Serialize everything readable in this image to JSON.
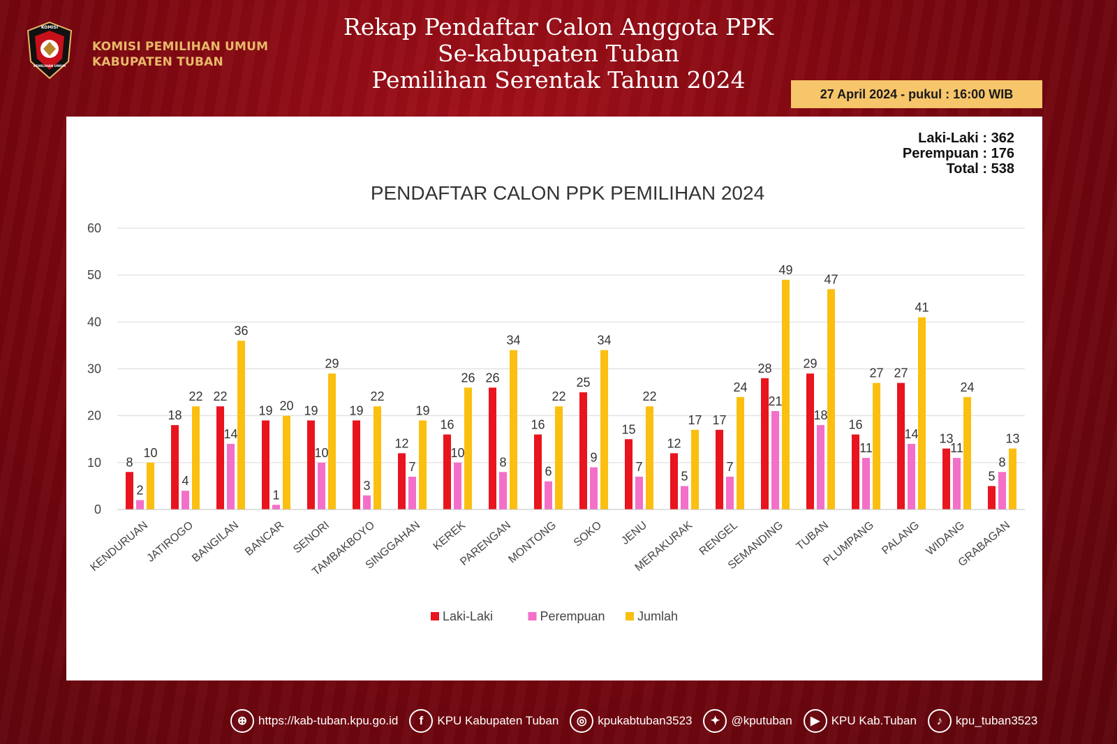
{
  "header": {
    "org_line1": "KOMISI PEMILIHAN UMUM",
    "org_line2": "KABUPATEN TUBAN",
    "logo_top_text": "KOMISI",
    "logo_bottom_text": "PEMILIHAN UMUM",
    "title_line1": "Rekap Pendaftar Calon Anggota PPK",
    "title_line2": "Se-kabupaten Tuban",
    "title_line3": "Pemilihan Serentak Tahun 2024",
    "date": "27 April 2024 - pukul : 16:00 WIB"
  },
  "totals": {
    "line1": "Laki-Laki : 362",
    "line2": "Perempuan : 176",
    "line3": "Total : 538"
  },
  "chart_data": {
    "type": "bar",
    "title": "PENDAFTAR CALON PPK PEMILIHAN 2024",
    "categories": [
      "KENDURUAN",
      "JATIROGO",
      "BANGILAN",
      "BANCAR",
      "SENORI",
      "TAMBAKBOYO",
      "SINGGAHAN",
      "KEREK",
      "PARENGAN",
      "MONTONG",
      "SOKO",
      "JENU",
      "MERAKURAK",
      "RENGEL",
      "SEMANDING",
      "TUBAN",
      "PLUMPANG",
      "PALANG",
      "WIDANG",
      "GRABAGAN"
    ],
    "series": [
      {
        "name": "Laki-Laki",
        "color": "#e8141e",
        "values": [
          8,
          18,
          22,
          19,
          19,
          19,
          12,
          16,
          26,
          16,
          25,
          15,
          12,
          17,
          28,
          29,
          16,
          27,
          13,
          5
        ]
      },
      {
        "name": "Perempuan",
        "color": "#f36fc8",
        "values": [
          2,
          4,
          14,
          1,
          10,
          3,
          7,
          10,
          8,
          6,
          9,
          7,
          5,
          7,
          21,
          18,
          11,
          14,
          11,
          8
        ]
      },
      {
        "name": "Jumlah",
        "color": "#fbbf10",
        "values": [
          10,
          22,
          36,
          20,
          29,
          22,
          19,
          26,
          34,
          22,
          34,
          22,
          17,
          24,
          49,
          47,
          27,
          41,
          24,
          13
        ]
      }
    ],
    "ylim": [
      0,
      60
    ],
    "yticks": [
      0,
      10,
      20,
      30,
      40,
      50,
      60
    ],
    "grid": true,
    "legend_position": "bottom"
  },
  "footer": {
    "items": [
      {
        "icon": "globe-icon",
        "glyph": "⊕",
        "label": "https://kab-tuban.kpu.go.id"
      },
      {
        "icon": "facebook-icon",
        "glyph": "f",
        "label": "KPU Kabupaten Tuban"
      },
      {
        "icon": "instagram-icon",
        "glyph": "◎",
        "label": "kpukabtuban3523"
      },
      {
        "icon": "twitter-icon",
        "glyph": "✦",
        "label": "@kputuban"
      },
      {
        "icon": "youtube-icon",
        "glyph": "▶",
        "label": "KPU Kab.Tuban"
      },
      {
        "icon": "tiktok-icon",
        "glyph": "♪",
        "label": "kpu_tuban3523"
      }
    ]
  }
}
